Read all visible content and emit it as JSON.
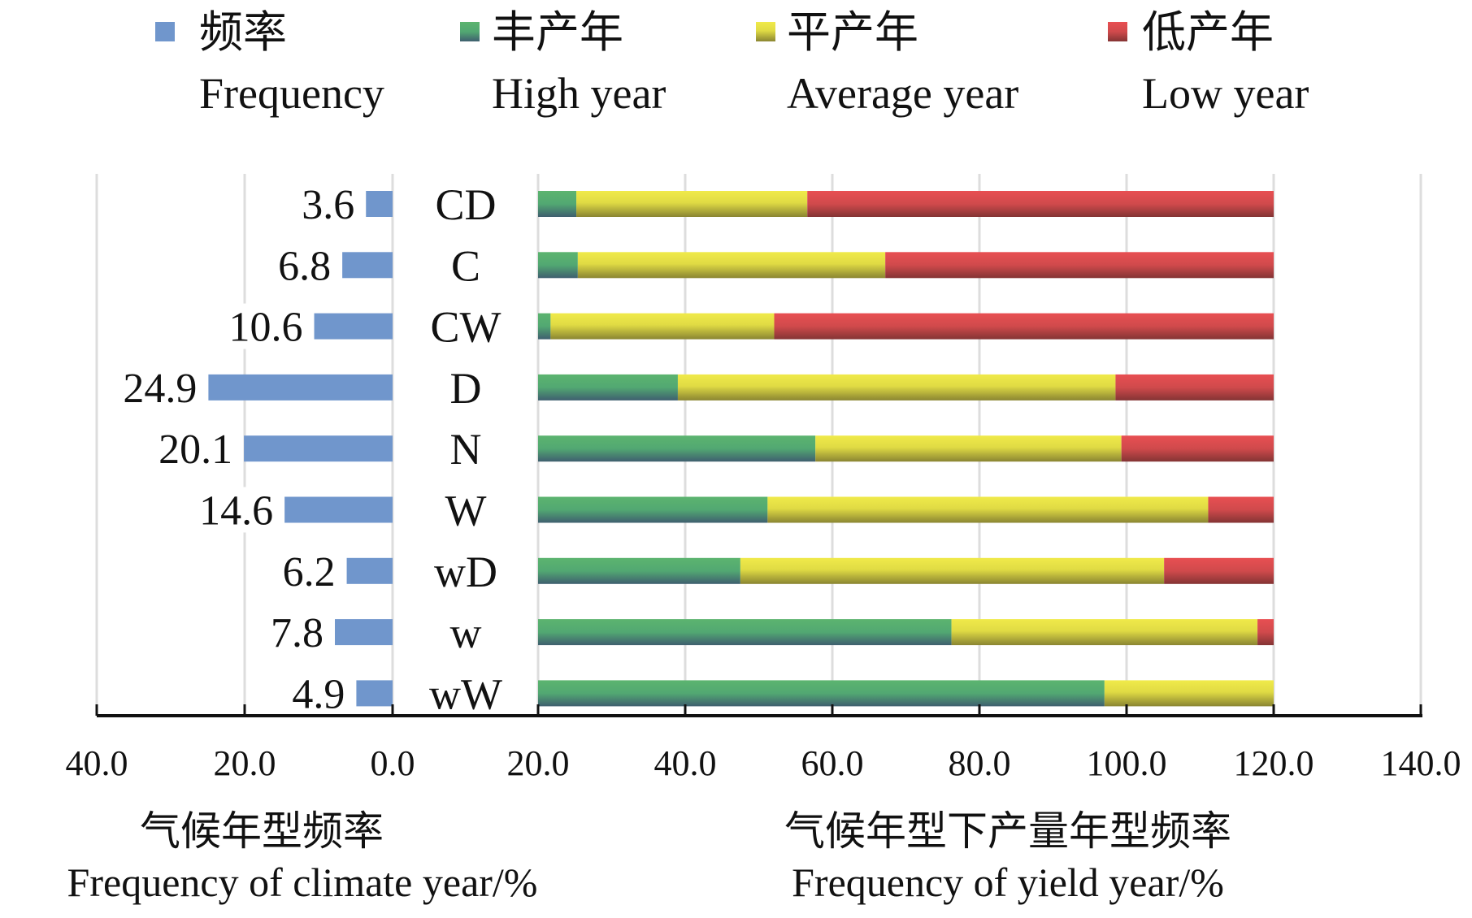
{
  "chart_data": {
    "type": "bar",
    "orientation": "horizontal",
    "colors": {
      "frequency": "#7096cc",
      "high": "#55b06e",
      "average": "#ece84a",
      "low": "#e04f52",
      "grid": "#dddddd",
      "axis": "#111111"
    },
    "legend": {
      "placement": "top",
      "entries": [
        {
          "key": "frequency",
          "zh": "频率",
          "en": "Frequency"
        },
        {
          "key": "high",
          "zh": "丰产年",
          "en": "High year"
        },
        {
          "key": "average",
          "zh": "平产年",
          "en": "Average year"
        },
        {
          "key": "low",
          "zh": "低产年",
          "en": "Low year"
        }
      ]
    },
    "categories": [
      "CD",
      "C",
      "CW",
      "D",
      "N",
      "W",
      "wD",
      "w",
      "wW"
    ],
    "left_panel": {
      "series_name": "Frequency",
      "values": [
        3.6,
        6.8,
        10.6,
        24.9,
        20.1,
        14.6,
        6.2,
        7.8,
        4.9
      ],
      "value_labels": [
        "3.6",
        "6.8",
        "10.6",
        "24.9",
        "20.1",
        "14.6",
        "6.2",
        "7.8",
        "4.9"
      ],
      "xlim": [
        40,
        0
      ],
      "ticks": [
        "40.0",
        "20.0",
        "0.0"
      ],
      "xlabel_zh": "气候年型频率",
      "xlabel_en": "Frequency of climate year/%"
    },
    "right_panel": {
      "stacked": true,
      "offset": 20,
      "series": [
        {
          "name": "High year",
          "key": "high",
          "values": [
            5.2,
            5.4,
            1.7,
            19.0,
            37.7,
            31.2,
            27.5,
            56.2,
            77.0
          ]
        },
        {
          "name": "Average year",
          "key": "average",
          "values": [
            31.4,
            41.8,
            30.4,
            59.5,
            41.6,
            59.9,
            57.6,
            41.6,
            23.0
          ]
        },
        {
          "name": "Low year",
          "key": "low",
          "values": [
            63.4,
            52.8,
            67.9,
            21.5,
            20.7,
            8.9,
            14.9,
            2.2,
            0.0
          ]
        }
      ],
      "xlim": [
        20,
        140
      ],
      "ticks": [
        "20.0",
        "40.0",
        "60.0",
        "80.0",
        "100.0",
        "120.0",
        "140.0"
      ],
      "xlabel_zh": "气候年型下产量年型频率",
      "xlabel_en": "Frequency of yield year/%"
    },
    "grid": true
  }
}
